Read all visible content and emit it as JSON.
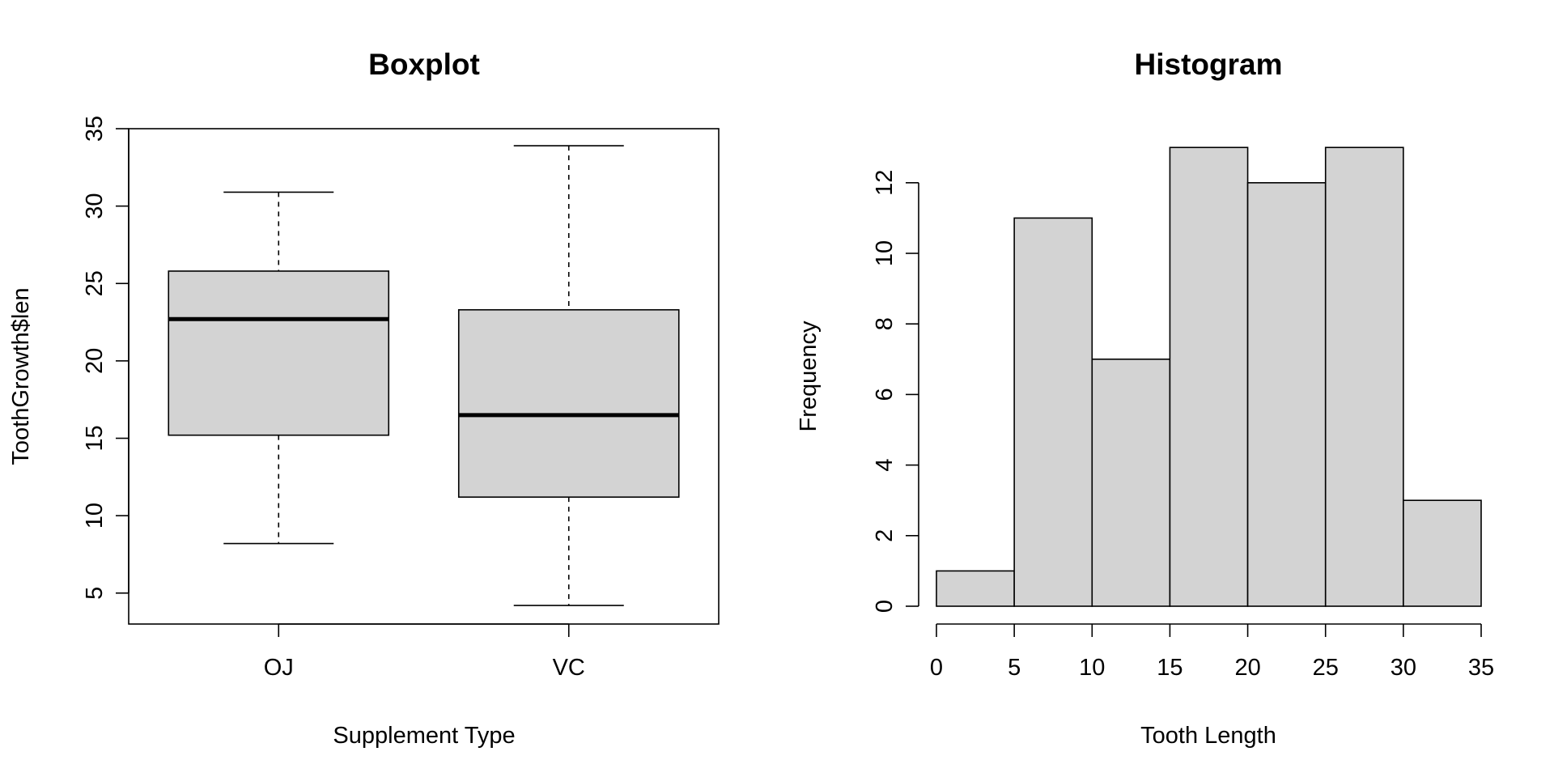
{
  "chart_data": [
    {
      "type": "box",
      "title": "Boxplot",
      "xlabel": "Supplement Type",
      "ylabel": "ToothGrowth$len",
      "ylim": [
        3,
        35
      ],
      "yticks": [
        5,
        10,
        15,
        20,
        25,
        30,
        35
      ],
      "categories": [
        "OJ",
        "VC"
      ],
      "boxes": [
        {
          "category": "OJ",
          "min": 8.2,
          "q1": 15.2,
          "median": 22.7,
          "q3": 25.8,
          "max": 30.9
        },
        {
          "category": "VC",
          "min": 4.2,
          "q1": 11.2,
          "median": 16.5,
          "q3": 23.3,
          "max": 33.9
        }
      ],
      "fill_color": "#d3d3d3",
      "line_color": "#000000"
    },
    {
      "type": "bar",
      "subtype": "histogram",
      "title": "Histogram",
      "xlabel": "Tooth Length",
      "ylabel": "Frequency",
      "bins": [
        [
          0,
          5
        ],
        [
          5,
          10
        ],
        [
          10,
          15
        ],
        [
          15,
          20
        ],
        [
          20,
          25
        ],
        [
          25,
          30
        ],
        [
          30,
          35
        ]
      ],
      "values": [
        1,
        11,
        7,
        13,
        12,
        13,
        3
      ],
      "xticks": [
        0,
        5,
        10,
        15,
        20,
        25,
        30,
        35
      ],
      "yticks": [
        0,
        2,
        4,
        6,
        8,
        10,
        12
      ],
      "xlim": [
        0,
        35
      ],
      "ylim": [
        0,
        13
      ],
      "fill_color": "#d3d3d3",
      "line_color": "#000000"
    }
  ]
}
